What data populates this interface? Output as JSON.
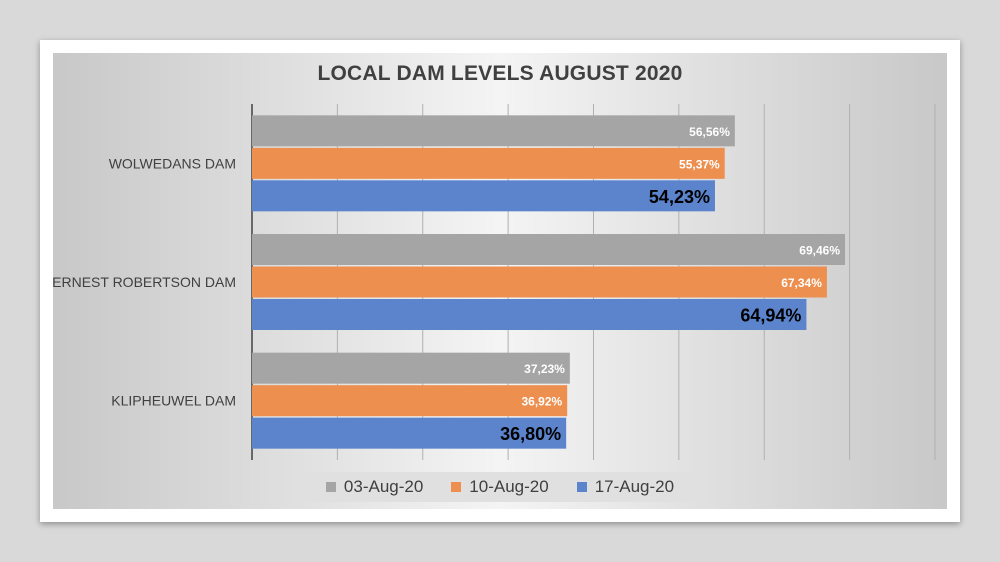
{
  "chart_data": {
    "type": "bar",
    "orientation": "horizontal",
    "title": "LOCAL DAM LEVELS AUGUST 2020",
    "categories": [
      "WOLWEDANS DAM",
      "ERNEST ROBERTSON DAM",
      "KLIPHEUWEL DAM"
    ],
    "series": [
      {
        "name": "03-Aug-20",
        "color": "#a5a5a5",
        "values": [
          56.56,
          69.46,
          37.23
        ],
        "labels": [
          "56,56%",
          "69,46%",
          "37,23%"
        ]
      },
      {
        "name": "10-Aug-20",
        "color": "#ed8f4f",
        "values": [
          55.37,
          67.34,
          36.92
        ],
        "labels": [
          "55,37%",
          "67,34%",
          "36,92%"
        ]
      },
      {
        "name": "17-Aug-20",
        "color": "#5b84cd",
        "values": [
          54.23,
          64.94,
          36.8
        ],
        "labels": [
          "54,23%",
          "64,94%",
          "36,80%"
        ]
      }
    ],
    "xlim": [
      0,
      80
    ],
    "grid": true,
    "legend_position": "bottom"
  }
}
